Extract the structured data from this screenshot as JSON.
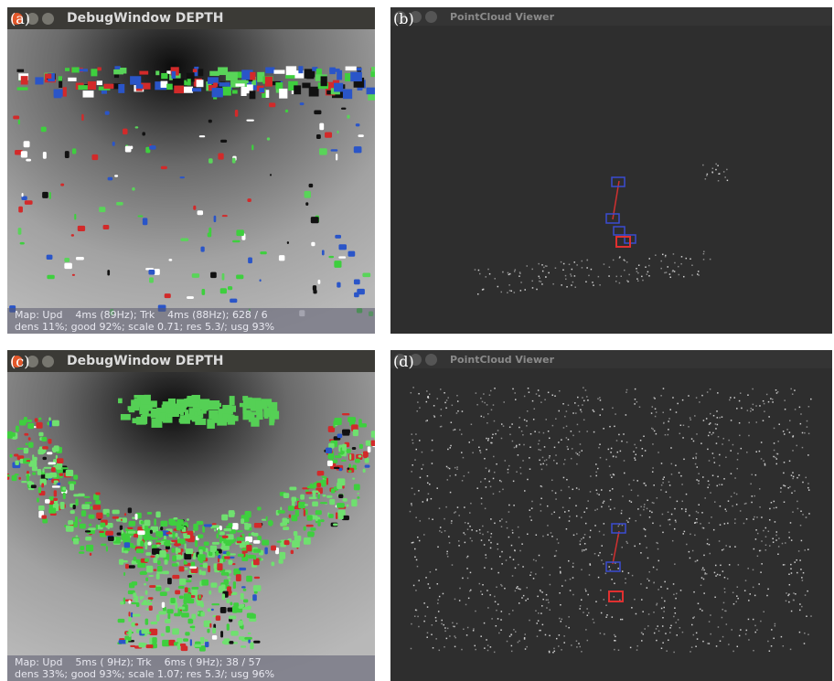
{
  "panels": [
    {
      "label": "(a)",
      "window_title": "DebugWindow DEPTH",
      "status": [
        "Map: Upd    4ms (89Hz); Trk    4ms (88Hz); 628 / 6",
        "dens 11%; good 92%; scale 0.71; res 5.3/; usg 93%"
      ]
    },
    {
      "label": "(b)",
      "window_title": "PointCloud Viewer"
    },
    {
      "label": "(c)",
      "window_title": "DebugWindow DEPTH",
      "status": [
        "Map: Upd    5ms ( 9Hz); Trk    6ms ( 9Hz); 38 / 57",
        "dens 33%; good 93%; scale 1.07; res 5.3/; usg 96%"
      ]
    },
    {
      "label": "(d)",
      "window_title": "PointCloud Viewer"
    }
  ]
}
